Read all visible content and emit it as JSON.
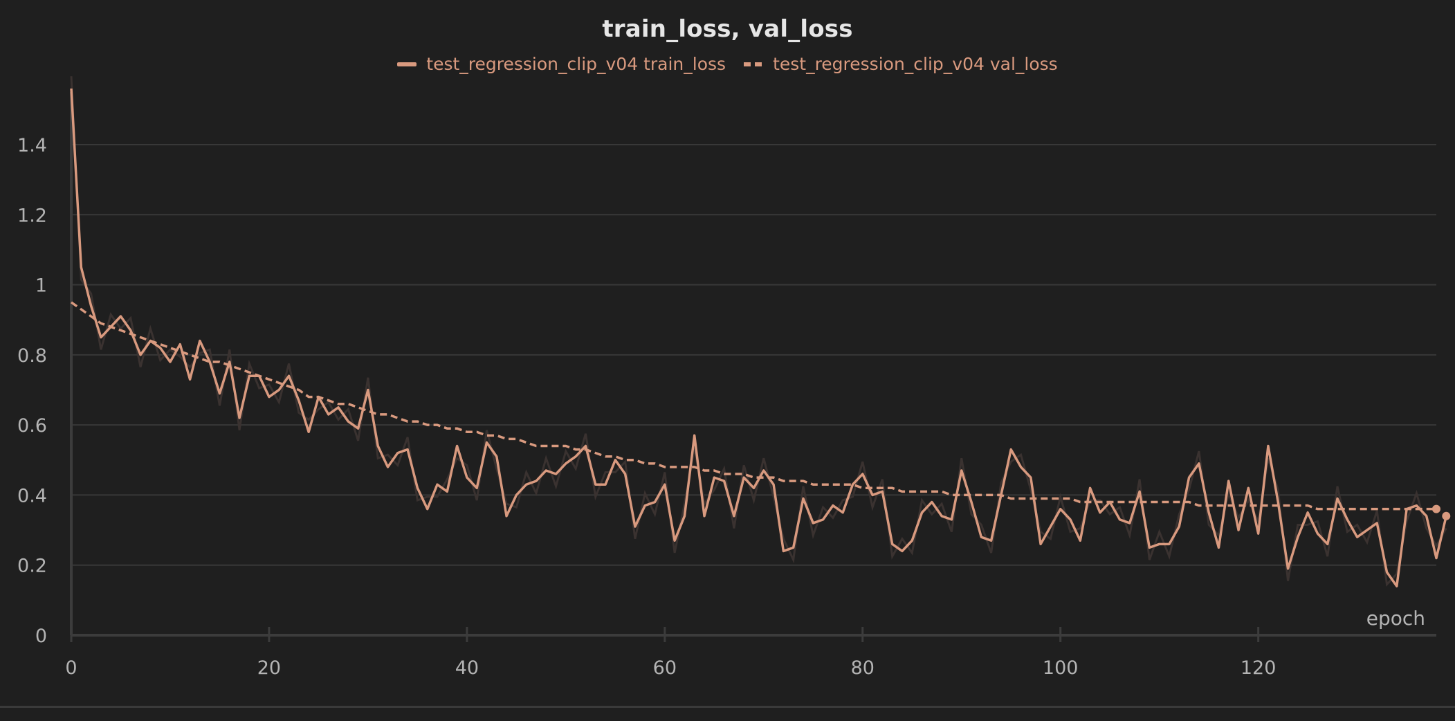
{
  "chart_data": {
    "type": "line",
    "title": "train_loss, val_loss",
    "xlabel": "epoch",
    "ylabel": "",
    "xlim": [
      0,
      138
    ],
    "ylim": [
      0,
      1.55
    ],
    "x_ticks": [
      0,
      20,
      40,
      60,
      80,
      100,
      120
    ],
    "y_ticks": [
      0,
      0.2,
      0.4,
      0.6,
      0.8,
      1,
      1.2,
      1.4
    ],
    "y_tick_labels": [
      "0",
      "0.2",
      "0.4",
      "0.6",
      "0.8",
      "1",
      "1.2",
      "1.4"
    ],
    "grid": true,
    "legend_position": "top-center",
    "series": [
      {
        "name": "test_regression_clip_v04 train_loss",
        "color": "#d99a7f",
        "style": "solid",
        "values": [
          1.56,
          1.05,
          0.94,
          0.85,
          0.88,
          0.91,
          0.87,
          0.8,
          0.84,
          0.82,
          0.78,
          0.83,
          0.73,
          0.84,
          0.78,
          0.69,
          0.78,
          0.62,
          0.74,
          0.74,
          0.68,
          0.7,
          0.74,
          0.67,
          0.58,
          0.68,
          0.63,
          0.65,
          0.61,
          0.59,
          0.7,
          0.54,
          0.48,
          0.52,
          0.53,
          0.42,
          0.36,
          0.43,
          0.41,
          0.54,
          0.45,
          0.42,
          0.55,
          0.51,
          0.34,
          0.4,
          0.43,
          0.44,
          0.47,
          0.46,
          0.49,
          0.51,
          0.54,
          0.43,
          0.43,
          0.5,
          0.46,
          0.31,
          0.37,
          0.38,
          0.43,
          0.27,
          0.34,
          0.57,
          0.34,
          0.45,
          0.44,
          0.34,
          0.45,
          0.42,
          0.47,
          0.43,
          0.24,
          0.25,
          0.39,
          0.32,
          0.33,
          0.37,
          0.35,
          0.43,
          0.46,
          0.4,
          0.41,
          0.26,
          0.24,
          0.27,
          0.35,
          0.38,
          0.34,
          0.33,
          0.47,
          0.38,
          0.28,
          0.27,
          0.4,
          0.53,
          0.48,
          0.45,
          0.26,
          0.31,
          0.36,
          0.33,
          0.27,
          0.42,
          0.35,
          0.38,
          0.33,
          0.32,
          0.41,
          0.25,
          0.26,
          0.26,
          0.31,
          0.45,
          0.49,
          0.35,
          0.25,
          0.44,
          0.3,
          0.42,
          0.29,
          0.54,
          0.38,
          0.19,
          0.28,
          0.35,
          0.29,
          0.26,
          0.39,
          0.33,
          0.28,
          0.3,
          0.32,
          0.18,
          0.14,
          0.36,
          0.37,
          0.34,
          0.22,
          0.34
        ]
      },
      {
        "name": "test_regression_clip_v04 val_loss",
        "color": "#d99a7f",
        "style": "dashed",
        "values": [
          0.95,
          0.93,
          0.91,
          0.89,
          0.88,
          0.87,
          0.86,
          0.85,
          0.84,
          0.83,
          0.82,
          0.81,
          0.8,
          0.79,
          0.78,
          0.78,
          0.77,
          0.76,
          0.75,
          0.74,
          0.73,
          0.72,
          0.71,
          0.7,
          0.68,
          0.68,
          0.67,
          0.66,
          0.66,
          0.65,
          0.64,
          0.63,
          0.63,
          0.62,
          0.61,
          0.61,
          0.6,
          0.6,
          0.59,
          0.59,
          0.58,
          0.58,
          0.57,
          0.57,
          0.56,
          0.56,
          0.55,
          0.54,
          0.54,
          0.54,
          0.54,
          0.53,
          0.53,
          0.52,
          0.51,
          0.51,
          0.5,
          0.5,
          0.49,
          0.49,
          0.48,
          0.48,
          0.48,
          0.48,
          0.47,
          0.47,
          0.46,
          0.46,
          0.46,
          0.45,
          0.45,
          0.45,
          0.44,
          0.44,
          0.44,
          0.43,
          0.43,
          0.43,
          0.43,
          0.43,
          0.42,
          0.42,
          0.42,
          0.42,
          0.41,
          0.41,
          0.41,
          0.41,
          0.41,
          0.4,
          0.4,
          0.4,
          0.4,
          0.4,
          0.4,
          0.39,
          0.39,
          0.39,
          0.39,
          0.39,
          0.39,
          0.39,
          0.38,
          0.38,
          0.38,
          0.38,
          0.38,
          0.38,
          0.38,
          0.38,
          0.38,
          0.38,
          0.38,
          0.38,
          0.37,
          0.37,
          0.37,
          0.37,
          0.37,
          0.37,
          0.37,
          0.37,
          0.37,
          0.37,
          0.37,
          0.37,
          0.36,
          0.36,
          0.36,
          0.36,
          0.36,
          0.36,
          0.36,
          0.36,
          0.36,
          0.36,
          0.36,
          0.36,
          0.36
        ]
      }
    ]
  }
}
